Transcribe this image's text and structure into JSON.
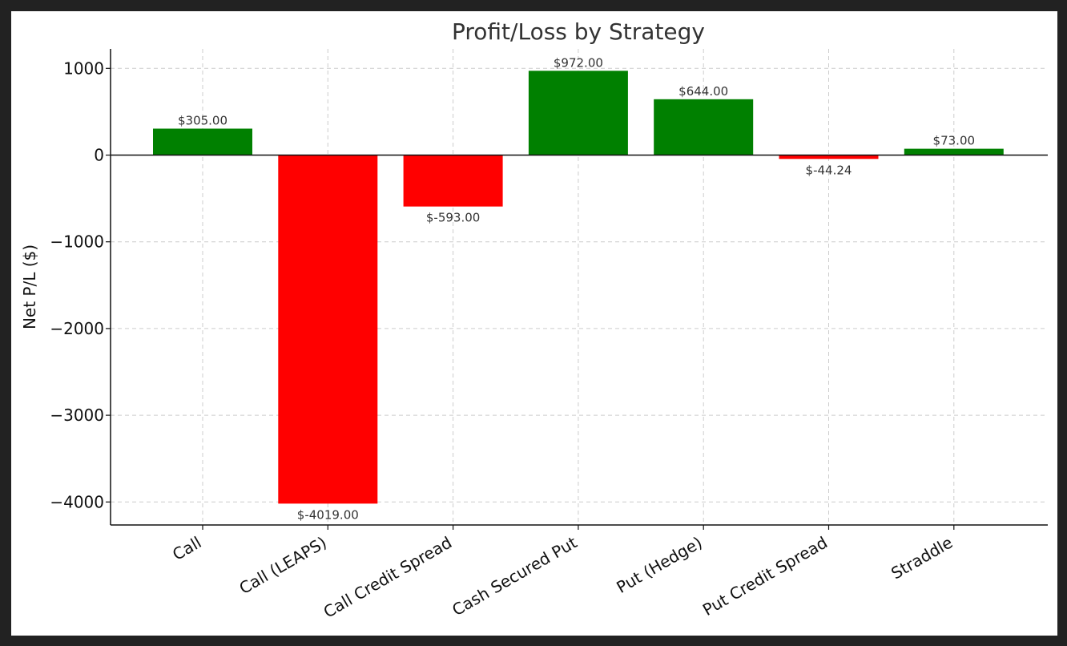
{
  "chart_data": {
    "type": "bar",
    "title": "Profit/Loss by Strategy",
    "xlabel": "",
    "ylabel": "Net P/L ($)",
    "categories": [
      "Call",
      "Call (LEAPS)",
      "Call Credit Spread",
      "Cash Secured Put",
      "Put (Hedge)",
      "Put Credit Spread",
      "Straddle"
    ],
    "values": [
      305.0,
      -4019.0,
      -593.0,
      972.0,
      644.0,
      -44.24,
      73.0
    ],
    "data_labels": [
      "$305.00",
      "$-4019.00",
      "$-593.00",
      "$972.00",
      "$644.00",
      "$-44.24",
      "$73.00"
    ],
    "yticks": [
      1000,
      0,
      -1000,
      -2000,
      -3000,
      -4000
    ],
    "ytick_labels": [
      "1000",
      "0",
      "−1000",
      "−2000",
      "−3000",
      "−4000"
    ],
    "ylim": [
      -4270,
      1220
    ],
    "grid": true,
    "colors": {
      "positive": "#008000",
      "negative": "#ff0000",
      "grid": "#cccccc",
      "axis": "#111111"
    }
  }
}
